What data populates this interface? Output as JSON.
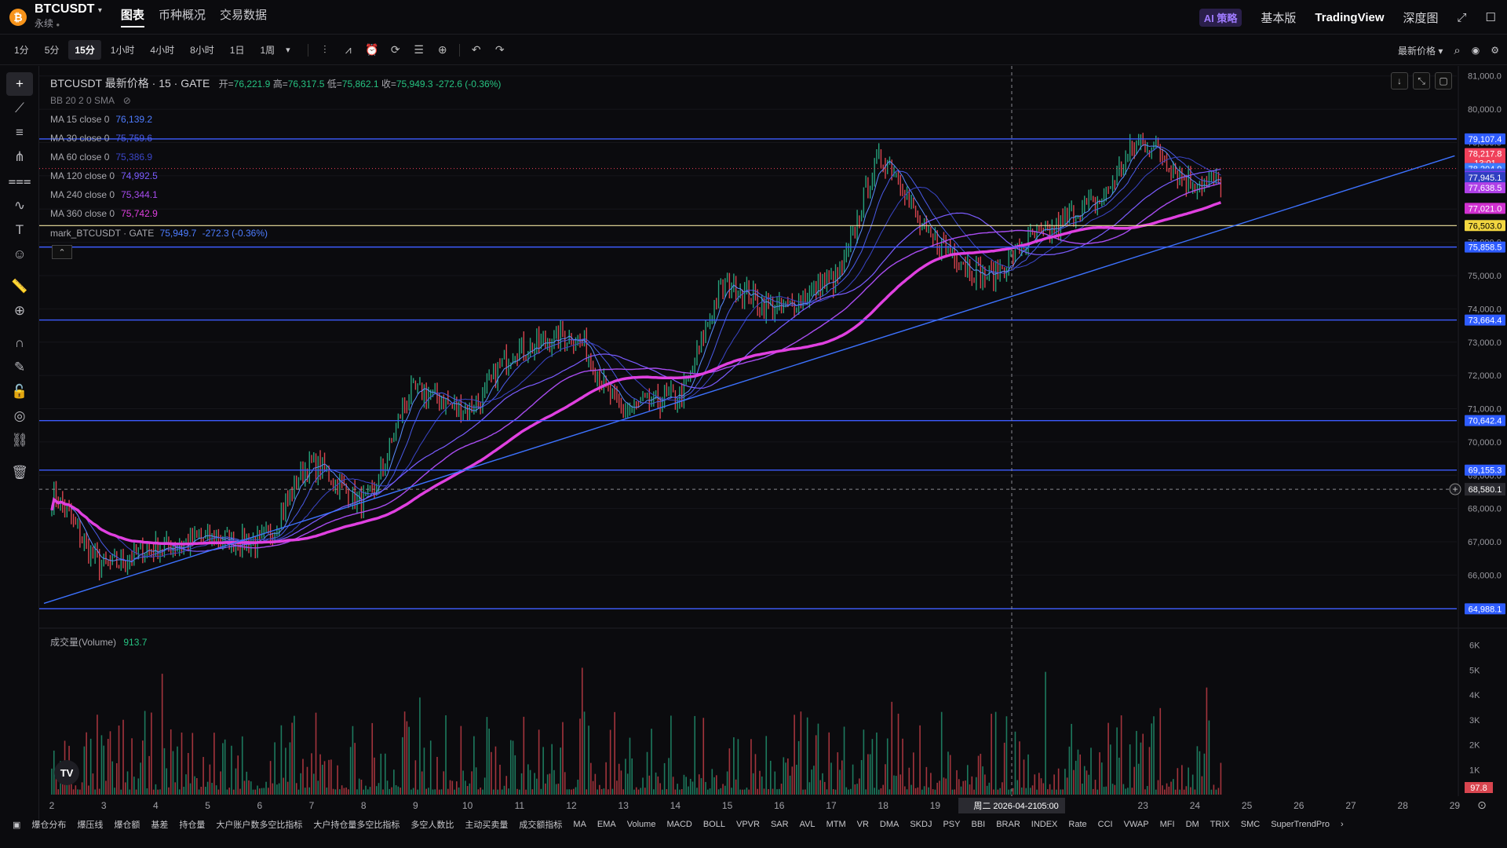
{
  "header": {
    "logo_glyph": "₿",
    "symbol": "BTCUSDT",
    "symbol_caret": "▾",
    "contract": "永续",
    "info_glyph": "●",
    "tabs": [
      "图表",
      "币种概况",
      "交易数据"
    ],
    "active_tab": 0,
    "ai_label": "AI 策略",
    "basic_label": "基本版",
    "tv_label": "TradingView",
    "depth_label": "深度图",
    "expand_glyph": "⤢",
    "window_glyph": "☐"
  },
  "toolbar": {
    "timeframes": [
      "1分",
      "5分",
      "15分",
      "1小时",
      "4小时",
      "8小时",
      "1日",
      "1周"
    ],
    "active_timeframe": 2,
    "more_glyph": "▾",
    "icons": [
      {
        "name": "candle-type-icon",
        "glyph": "⫶"
      },
      {
        "name": "indicators-icon",
        "glyph": "⩘"
      },
      {
        "name": "alert-icon",
        "glyph": "⏰"
      },
      {
        "name": "replay-icon",
        "glyph": "⟳"
      },
      {
        "name": "template-icon",
        "glyph": "☰"
      },
      {
        "name": "add-icon",
        "glyph": "⊕"
      }
    ],
    "undo_glyph": "↶",
    "redo_glyph": "↷",
    "price_mode": "最新价格",
    "price_mode_caret": "▾",
    "search_glyph": "⌕",
    "camera_glyph": "◉",
    "settings_glyph": "⚙"
  },
  "left_tools": [
    {
      "name": "crosshair-tool-icon",
      "glyph": "+"
    },
    {
      "name": "trendline-tool-icon",
      "glyph": "⟋"
    },
    {
      "name": "horizontal-lines-tool-icon",
      "glyph": "≡"
    },
    {
      "name": "pitchfork-tool-icon",
      "glyph": "⋔"
    },
    {
      "name": "fib-tool-icon",
      "glyph": "⩶"
    },
    {
      "name": "pattern-tool-icon",
      "glyph": "∿"
    },
    {
      "name": "text-tool-icon",
      "glyph": "T"
    },
    {
      "name": "emoji-tool-icon",
      "glyph": "☺"
    },
    {
      "name": "ruler-tool-icon",
      "glyph": "📏"
    },
    {
      "name": "zoom-tool-icon",
      "glyph": "⊕"
    },
    {
      "name": "magnet-tool-icon",
      "glyph": "∩"
    },
    {
      "name": "lock-edit-tool-icon",
      "glyph": "✎"
    },
    {
      "name": "lock-tool-icon",
      "glyph": "🔓"
    },
    {
      "name": "eye-tool-icon",
      "glyph": "◎"
    },
    {
      "name": "link-tool-icon",
      "glyph": "⛓"
    },
    {
      "name": "trash-tool-icon",
      "glyph": "🗑"
    }
  ],
  "legend": {
    "title": "BTCUSDT 最新价格 · 15 · GATE",
    "open_label": "开=",
    "open": "76,221.9",
    "high_label": "高=",
    "high": "76,317.5",
    "low_label": "低=",
    "low": "75,862.1",
    "close_label": "收=",
    "close": "75,949.3",
    "change": "-272.6 (-0.36%)",
    "bb": "BB 20 2 0 SMA",
    "hide_glyph": "⊘",
    "mas": [
      {
        "label": "MA 15 close 0",
        "value": "76,139.2",
        "color": "#4f7cff"
      },
      {
        "label": "MA 30 close 0",
        "value": "75,759.6",
        "color": "#4a5be8"
      },
      {
        "label": "MA 60 close 0",
        "value": "75,386.9",
        "color": "#3b46c8"
      },
      {
        "label": "MA 120 close 0",
        "value": "74,992.5",
        "color": "#7b5cff"
      },
      {
        "label": "MA 240 close 0",
        "value": "75,344.1",
        "color": "#a84cf0"
      },
      {
        "label": "MA 360 close 0",
        "value": "75,742.9",
        "color": "#e040e0"
      }
    ],
    "mark_label": "mark_BTCUSDT · GATE",
    "mark_value": "75,949.7",
    "mark_change": "-272.3 (-0.36%)",
    "collapse_glyph": "⌃",
    "volume_label": "成交量(Volume)",
    "volume_value": "913.7"
  },
  "chart_ctrls": [
    "↓",
    "⤡",
    "▢"
  ],
  "price_axis": [
    "81,000.0",
    "80,000.0",
    "79,000.0",
    "78,000.0",
    "77,000.0",
    "76,000.0",
    "75,000.0",
    "74,000.0",
    "73,000.0",
    "72,000.0",
    "71,000.0",
    "70,000.0",
    "69,000.0",
    "68,000.0",
    "67,000.0",
    "66,000.0",
    "65,000.0"
  ],
  "price_tags": [
    {
      "value": "79,107.4",
      "color": "#2e5cff"
    },
    {
      "value": "78,217.8",
      "color": "#f0405a",
      "sub": "13:01"
    },
    {
      "value": "78,217.8",
      "color": "#2e5cff"
    },
    {
      "value": "78,204.9",
      "color": "#3b7bff"
    },
    {
      "value": "78,051.5",
      "color": "#3f4fd8"
    },
    {
      "value": "77,973.9",
      "color": "#7a3bf0"
    },
    {
      "value": "77,945.1",
      "color": "#2e3ec0"
    },
    {
      "value": "77,638.5",
      "color": "#b040e8"
    },
    {
      "value": "77,021.0",
      "color": "#d030d0"
    },
    {
      "value": "76,503.0",
      "color": "#f2d640"
    },
    {
      "value": "75,858.5",
      "color": "#2e5cff"
    },
    {
      "value": "73,664.4",
      "color": "#2e5cff"
    },
    {
      "value": "70,642.4",
      "color": "#2e5cff"
    },
    {
      "value": "69,155.3",
      "color": "#2e5cff"
    },
    {
      "value": "64,988.1",
      "color": "#2e5cff"
    }
  ],
  "crosshair": {
    "price": "68,580.1",
    "date": "周二 2026-04-21",
    "time": "05:00",
    "add_glyph": "+"
  },
  "volume_axis": [
    "6K",
    "5K",
    "4K",
    "3K",
    "2K",
    "1K"
  ],
  "volume_last": "97.8",
  "x_axis": [
    "2",
    "3",
    "4",
    "5",
    "6",
    "7",
    "8",
    "9",
    "10",
    "11",
    "12",
    "13",
    "14",
    "15",
    "16",
    "17",
    "18",
    "19",
    "20",
    "23",
    "24",
    "25",
    "26",
    "27",
    "28",
    "29"
  ],
  "tv_logo_text": "TV",
  "bottom": {
    "layout_glyph": "▣",
    "indicators": [
      "爆仓分布",
      "爆压线",
      "爆仓额",
      "基差",
      "持仓量",
      "大户账户数多空比指标",
      "大户持仓量多空比指标",
      "多空人数比",
      "主动买卖量",
      "成交额指标",
      "MA",
      "EMA",
      "Volume",
      "MACD",
      "BOLL",
      "VPVR",
      "SAR",
      "AVL",
      "MTM",
      "VR",
      "DMA",
      "SKDJ",
      "PSY",
      "BBI",
      "BRAR",
      "INDEX",
      "Rate",
      "CCI",
      "VWAP",
      "MFI",
      "DM",
      "TRIX",
      "SMC",
      "SuperTrendPro"
    ],
    "more_glyph": "›",
    "settings_glyph": "⊙"
  },
  "chart_data": {
    "type": "candlestick",
    "timeframe": "15分",
    "x_days": [
      "2",
      "3",
      "4",
      "5",
      "6",
      "7",
      "8",
      "9",
      "10",
      "11",
      "12",
      "13",
      "14",
      "15",
      "16",
      "17",
      "18",
      "19",
      "20",
      "21",
      "22",
      "23",
      "24"
    ],
    "close_by_day": [
      68300,
      66300,
      66800,
      67100,
      67000,
      69300,
      68200,
      71500,
      71000,
      72800,
      73200,
      71000,
      71300,
      74700,
      74000,
      74800,
      78500,
      76000,
      75000,
      76200,
      77100,
      79000,
      77800
    ],
    "ma_latest": {
      "MA15": 76139.2,
      "MA30": 75759.6,
      "MA60": 75386.9,
      "MA120": 74992.5,
      "MA240": 75344.1,
      "MA360": 75742.9
    },
    "horizontal_levels": [
      79107.4,
      75858.5,
      73664.4,
      70642.4,
      69155.3,
      64988.1
    ],
    "yellow_level": 76503.0,
    "trendline": {
      "from": [
        "2",
        65150
      ],
      "to": [
        "29",
        78600
      ]
    },
    "volume_peak": "6K",
    "y_range": [
      64500,
      81300
    ],
    "volume_range": [
      0,
      6300
    ]
  }
}
